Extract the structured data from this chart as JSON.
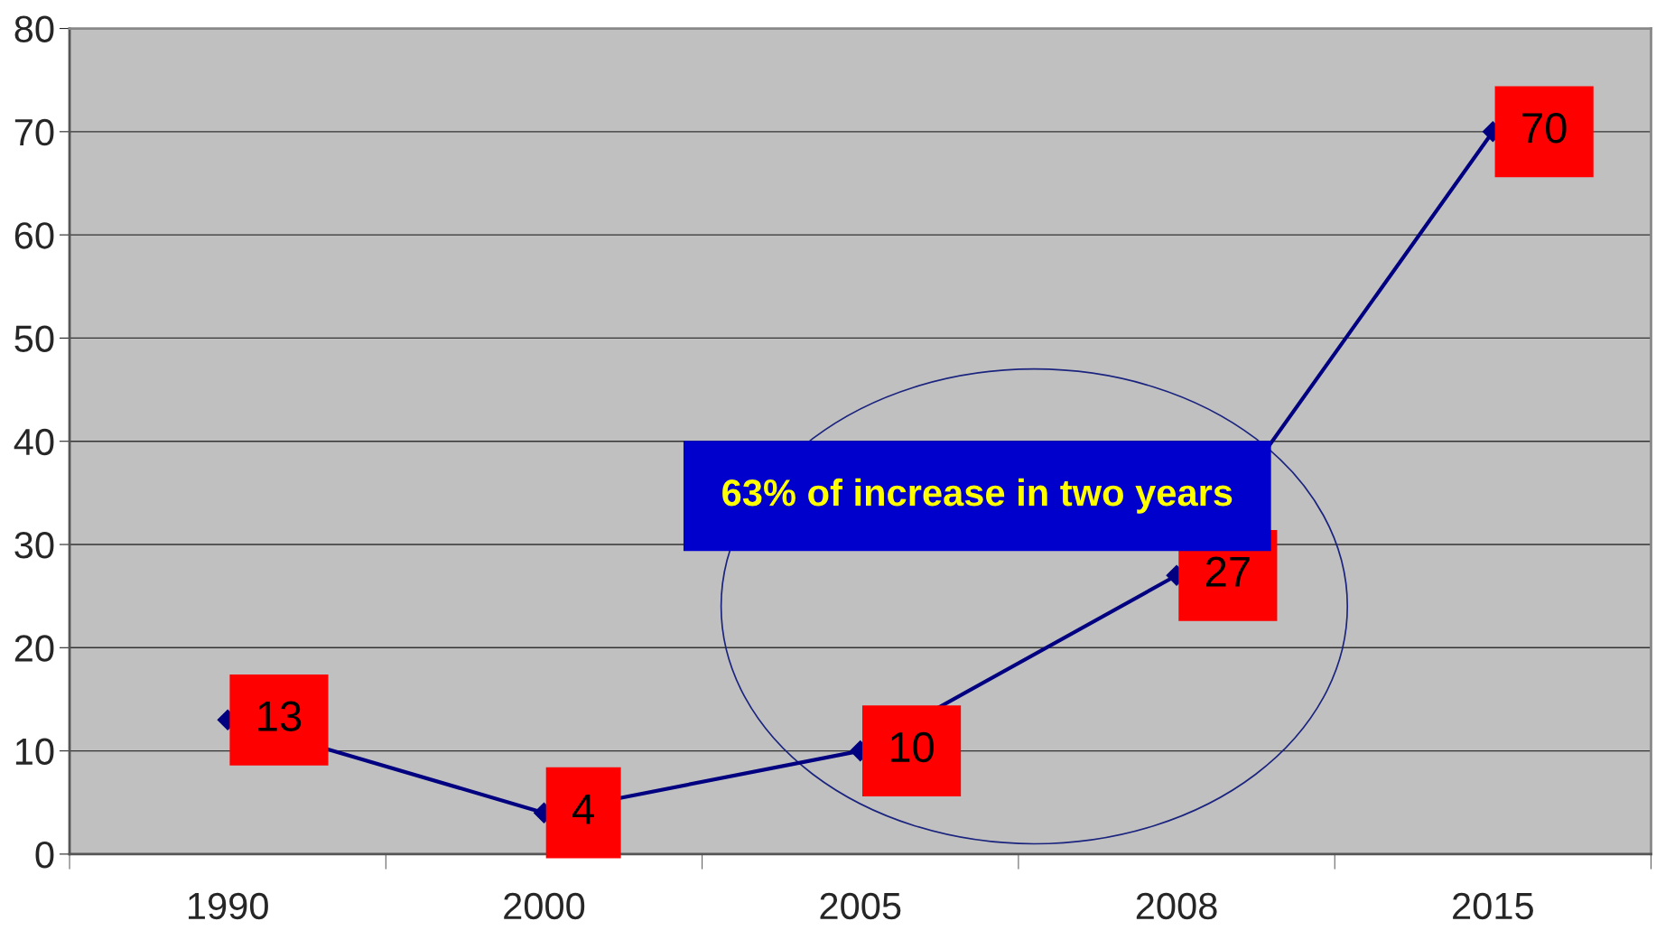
{
  "chart_data": {
    "type": "line",
    "categories": [
      "1990",
      "2000",
      "2005",
      "2008",
      "2015"
    ],
    "series": [
      {
        "color": "#000080",
        "values": [
          13,
          4,
          10,
          27,
          70
        ]
      }
    ],
    "ylim": [
      0,
      80
    ],
    "yticks": [
      0,
      10,
      20,
      30,
      40,
      50,
      60,
      70,
      80
    ],
    "grid": "y",
    "marker": "diamond",
    "line_style": "solid",
    "data_labels": true,
    "annotations": [
      "63% of increase in two years"
    ]
  }
}
